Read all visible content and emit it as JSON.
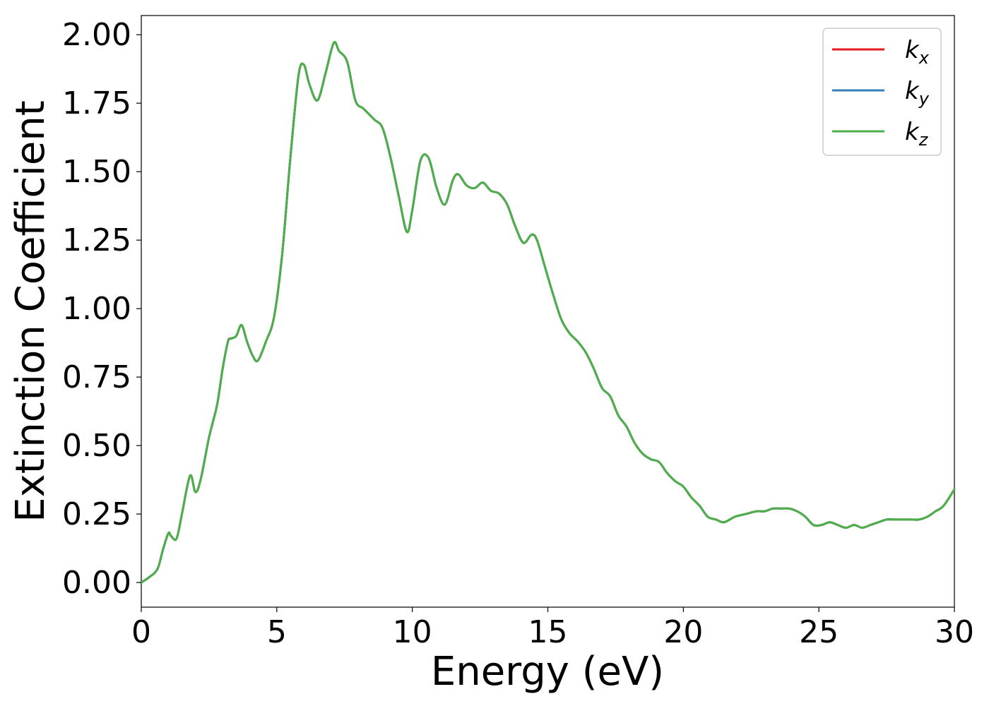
{
  "chart_data": {
    "type": "line",
    "xlabel": "Energy (eV)",
    "ylabel": "Extinction Coefficient",
    "xlim": [
      0,
      30
    ],
    "ylim": [
      -0.09,
      2.07
    ],
    "xticks": [
      0,
      5,
      10,
      15,
      20,
      25,
      30
    ],
    "xtick_labels": [
      "0",
      "5",
      "10",
      "15",
      "20",
      "25",
      "30"
    ],
    "yticks": [
      0,
      0.25,
      0.5,
      0.75,
      1.0,
      1.25,
      1.5,
      1.75,
      2.0
    ],
    "ytick_labels": [
      "0.00",
      "0.25",
      "0.50",
      "0.75",
      "1.00",
      "1.25",
      "1.50",
      "1.75",
      "2.00"
    ],
    "grid": false,
    "legend_position": "top-right",
    "x": [
      0,
      0.3,
      0.6,
      0.8,
      1.0,
      1.1,
      1.3,
      1.5,
      1.8,
      2.0,
      2.2,
      2.5,
      2.8,
      3.0,
      3.2,
      3.3,
      3.5,
      3.7,
      3.9,
      4.1,
      4.3,
      4.6,
      4.9,
      5.2,
      5.5,
      5.8,
      6.0,
      6.2,
      6.5,
      6.8,
      7.1,
      7.3,
      7.6,
      7.9,
      8.2,
      8.6,
      8.9,
      9.2,
      9.5,
      9.8,
      10.0,
      10.3,
      10.6,
      10.9,
      11.2,
      11.5,
      11.7,
      12.0,
      12.3,
      12.6,
      12.9,
      13.2,
      13.5,
      13.8,
      14.1,
      14.4,
      14.6,
      14.9,
      15.2,
      15.5,
      15.8,
      16.1,
      16.4,
      16.7,
      17.0,
      17.3,
      17.6,
      17.9,
      18.2,
      18.5,
      18.8,
      19.1,
      19.4,
      19.7,
      20.0,
      20.3,
      20.6,
      20.9,
      21.2,
      21.5,
      21.9,
      22.3,
      22.7,
      23.0,
      23.3,
      23.6,
      23.9,
      24.2,
      24.5,
      24.8,
      25.1,
      25.4,
      25.7,
      26.0,
      26.3,
      26.6,
      26.9,
      27.2,
      27.5,
      27.8,
      28.1,
      28.4,
      28.7,
      29.0,
      29.3,
      29.6,
      30.0
    ],
    "series": [
      {
        "name": "k_x",
        "color": "#e41a1c",
        "values": [
          0.0,
          0.02,
          0.05,
          0.12,
          0.18,
          0.17,
          0.16,
          0.25,
          0.39,
          0.33,
          0.38,
          0.53,
          0.65,
          0.78,
          0.88,
          0.89,
          0.9,
          0.94,
          0.88,
          0.83,
          0.81,
          0.88,
          0.97,
          1.2,
          1.55,
          1.85,
          1.89,
          1.82,
          1.76,
          1.86,
          1.97,
          1.94,
          1.9,
          1.76,
          1.73,
          1.69,
          1.66,
          1.55,
          1.41,
          1.28,
          1.36,
          1.54,
          1.55,
          1.44,
          1.38,
          1.47,
          1.49,
          1.45,
          1.44,
          1.46,
          1.43,
          1.42,
          1.38,
          1.3,
          1.24,
          1.27,
          1.25,
          1.15,
          1.05,
          0.96,
          0.91,
          0.88,
          0.84,
          0.78,
          0.71,
          0.68,
          0.61,
          0.57,
          0.51,
          0.47,
          0.45,
          0.44,
          0.4,
          0.37,
          0.35,
          0.31,
          0.28,
          0.24,
          0.23,
          0.22,
          0.24,
          0.25,
          0.26,
          0.26,
          0.27,
          0.27,
          0.27,
          0.26,
          0.24,
          0.21,
          0.21,
          0.22,
          0.21,
          0.2,
          0.21,
          0.2,
          0.21,
          0.22,
          0.23,
          0.23,
          0.23,
          0.23,
          0.23,
          0.24,
          0.26,
          0.28,
          0.34
        ]
      },
      {
        "name": "k_y",
        "color": "#377eb8",
        "values": [
          0.0,
          0.02,
          0.05,
          0.12,
          0.18,
          0.17,
          0.16,
          0.25,
          0.39,
          0.33,
          0.38,
          0.53,
          0.65,
          0.78,
          0.88,
          0.89,
          0.9,
          0.94,
          0.88,
          0.83,
          0.81,
          0.88,
          0.97,
          1.2,
          1.55,
          1.85,
          1.89,
          1.82,
          1.76,
          1.86,
          1.97,
          1.94,
          1.9,
          1.76,
          1.73,
          1.69,
          1.66,
          1.55,
          1.41,
          1.28,
          1.36,
          1.54,
          1.55,
          1.44,
          1.38,
          1.47,
          1.49,
          1.45,
          1.44,
          1.46,
          1.43,
          1.42,
          1.38,
          1.3,
          1.24,
          1.27,
          1.25,
          1.15,
          1.05,
          0.96,
          0.91,
          0.88,
          0.84,
          0.78,
          0.71,
          0.68,
          0.61,
          0.57,
          0.51,
          0.47,
          0.45,
          0.44,
          0.4,
          0.37,
          0.35,
          0.31,
          0.28,
          0.24,
          0.23,
          0.22,
          0.24,
          0.25,
          0.26,
          0.26,
          0.27,
          0.27,
          0.27,
          0.26,
          0.24,
          0.21,
          0.21,
          0.22,
          0.21,
          0.2,
          0.21,
          0.2,
          0.21,
          0.22,
          0.23,
          0.23,
          0.23,
          0.23,
          0.23,
          0.24,
          0.26,
          0.28,
          0.34
        ]
      },
      {
        "name": "k_z",
        "color": "#4daf4a",
        "values": [
          0.0,
          0.02,
          0.05,
          0.12,
          0.18,
          0.17,
          0.16,
          0.25,
          0.39,
          0.33,
          0.38,
          0.53,
          0.65,
          0.78,
          0.88,
          0.89,
          0.9,
          0.94,
          0.88,
          0.83,
          0.81,
          0.88,
          0.97,
          1.2,
          1.55,
          1.85,
          1.89,
          1.82,
          1.76,
          1.86,
          1.97,
          1.94,
          1.9,
          1.76,
          1.73,
          1.69,
          1.66,
          1.55,
          1.41,
          1.28,
          1.36,
          1.54,
          1.55,
          1.44,
          1.38,
          1.47,
          1.49,
          1.45,
          1.44,
          1.46,
          1.43,
          1.42,
          1.38,
          1.3,
          1.24,
          1.27,
          1.25,
          1.15,
          1.05,
          0.96,
          0.91,
          0.88,
          0.84,
          0.78,
          0.71,
          0.68,
          0.61,
          0.57,
          0.51,
          0.47,
          0.45,
          0.44,
          0.4,
          0.37,
          0.35,
          0.31,
          0.28,
          0.24,
          0.23,
          0.22,
          0.24,
          0.25,
          0.26,
          0.26,
          0.27,
          0.27,
          0.27,
          0.26,
          0.24,
          0.21,
          0.21,
          0.22,
          0.21,
          0.2,
          0.21,
          0.2,
          0.21,
          0.22,
          0.23,
          0.23,
          0.23,
          0.23,
          0.23,
          0.24,
          0.26,
          0.28,
          0.34
        ]
      }
    ],
    "legend": [
      {
        "base": "k",
        "sub": "x",
        "color": "#e41a1c"
      },
      {
        "base": "k",
        "sub": "y",
        "color": "#377eb8"
      },
      {
        "base": "k",
        "sub": "z",
        "color": "#4daf4a"
      }
    ]
  }
}
